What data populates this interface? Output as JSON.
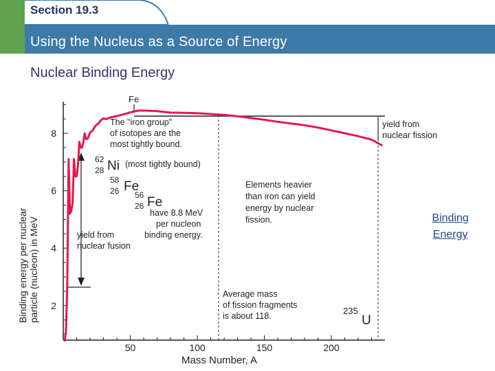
{
  "header": {
    "section": "Section 19.3",
    "title": "Using the Nucleus as a Source of Energy",
    "subtitle": "Nuclear Binding Energy"
  },
  "side_link": {
    "line1": "Binding",
    "line2": "Energy"
  },
  "colors": {
    "tab_green": "#5fa34e",
    "title_bar": "#3d7aa8",
    "curve": "#e8174b",
    "text_dark": "#2b2f66"
  },
  "chart_data": {
    "type": "line",
    "xlabel": "Mass Number, A",
    "ylabel_line1": "Binding energy per nuclear",
    "ylabel_line2": "particle (nucleon) in MeV",
    "xlim": [
      0,
      240
    ],
    "ylim": [
      0.8,
      9.1
    ],
    "x_ticks": [
      50,
      100,
      150,
      200
    ],
    "y_ticks": [
      2,
      4,
      6,
      8
    ],
    "series": [
      {
        "x": [
          1,
          2,
          3,
          4,
          5,
          6,
          7,
          8,
          9,
          10,
          11,
          12,
          13,
          14,
          15,
          16,
          17,
          18,
          19,
          20,
          22,
          24,
          26,
          28,
          30,
          32,
          35,
          40,
          45,
          50,
          56,
          62,
          70,
          80,
          90,
          100,
          110,
          120,
          130,
          140,
          150,
          160,
          170,
          180,
          190,
          200,
          210,
          220,
          230,
          238
        ],
        "y": [
          0.5,
          1.1,
          2.6,
          7.1,
          5.2,
          5.3,
          5.6,
          7.1,
          6.5,
          6.5,
          6.9,
          7.7,
          7.5,
          7.5,
          7.7,
          8.0,
          7.8,
          7.8,
          7.9,
          8.03,
          8.1,
          8.26,
          8.33,
          8.45,
          8.52,
          8.49,
          8.55,
          8.6,
          8.66,
          8.73,
          8.79,
          8.79,
          8.77,
          8.72,
          8.71,
          8.7,
          8.67,
          8.64,
          8.59,
          8.53,
          8.47,
          8.4,
          8.34,
          8.28,
          8.2,
          8.1,
          8.0,
          7.9,
          7.78,
          7.57
        ]
      }
    ],
    "annotations": {
      "fe_top": "Fe",
      "iron_group_1": "The \"iron group\"",
      "iron_group_2": "of isotopes are the",
      "iron_group_3": "most tightly bound.",
      "ni_mass": "62",
      "ni_atomic": "28",
      "ni_symbol": "Ni",
      "ni_note": "(most tightly bound)",
      "fe58_mass": "58",
      "fe58_atomic": "26",
      "fe58_symbol": "Fe",
      "fe56_mass": "56",
      "fe56_atomic": "26",
      "fe56_symbol": "Fe",
      "have_1": "have 8.8 MeV",
      "have_2": "per nucleon",
      "have_3": "binding energy.",
      "fusion_1": "yield from",
      "fusion_2": "nuclear fusion",
      "heavier_1": "Elements heavier",
      "heavier_2": "than iron can yield",
      "heavier_3": "energy by nuclear",
      "heavier_4": "fission.",
      "fission_1": "yield from",
      "fission_2": "nuclear fission",
      "avg_1": "Average mass",
      "avg_2": "of fission fragments",
      "avg_3": "is about 118.",
      "u_mass": "235",
      "u_symbol": "U"
    },
    "grid": false
  }
}
